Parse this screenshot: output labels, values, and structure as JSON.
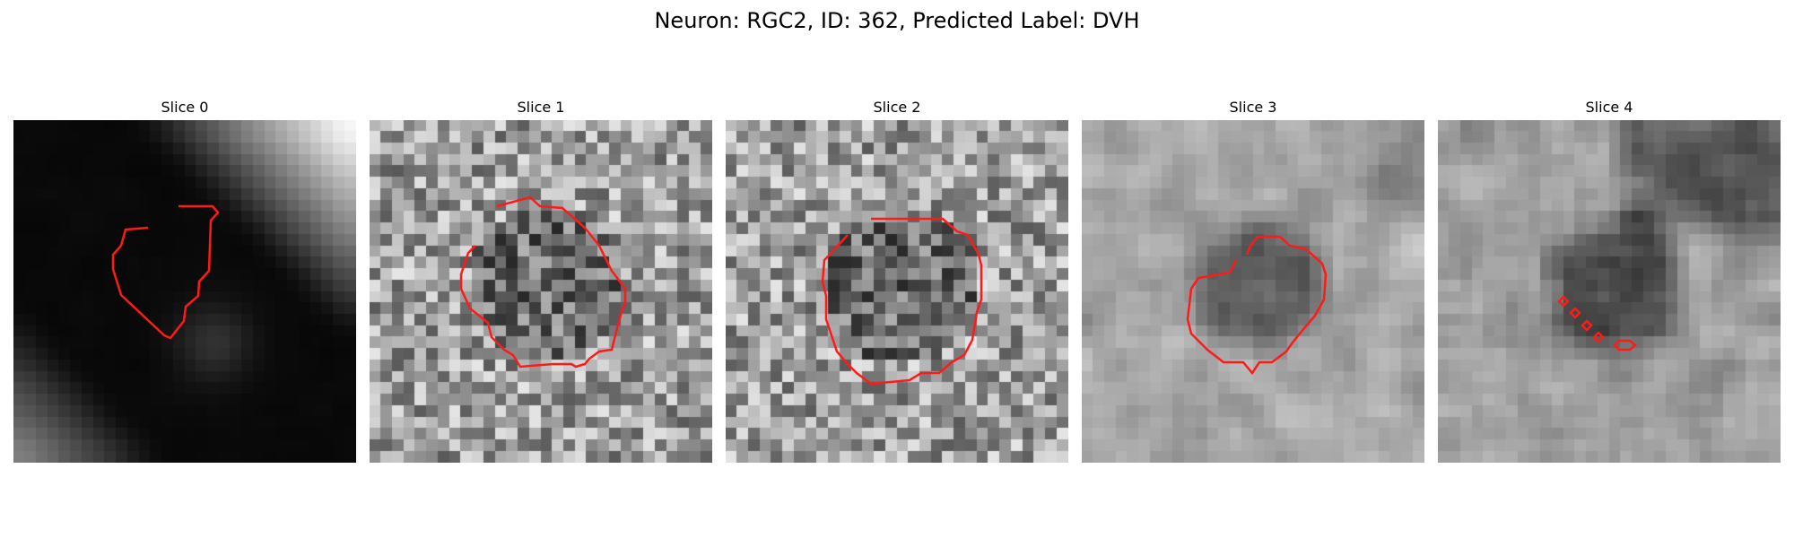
{
  "figure": {
    "title": "Neuron: RGC2, ID: 362, Predicted Label: DVH",
    "contour_color": "#ff1a1a"
  },
  "panels": [
    {
      "label": "Slice 0",
      "grid": 30,
      "style": "dark"
    },
    {
      "label": "Slice 1",
      "grid": 30,
      "style": "noise"
    },
    {
      "label": "Slice 2",
      "grid": 30,
      "style": "noise"
    },
    {
      "label": "Slice 3",
      "grid": 30,
      "style": "blob"
    },
    {
      "label": "Slice 4",
      "grid": 30,
      "style": "blob2"
    }
  ]
}
